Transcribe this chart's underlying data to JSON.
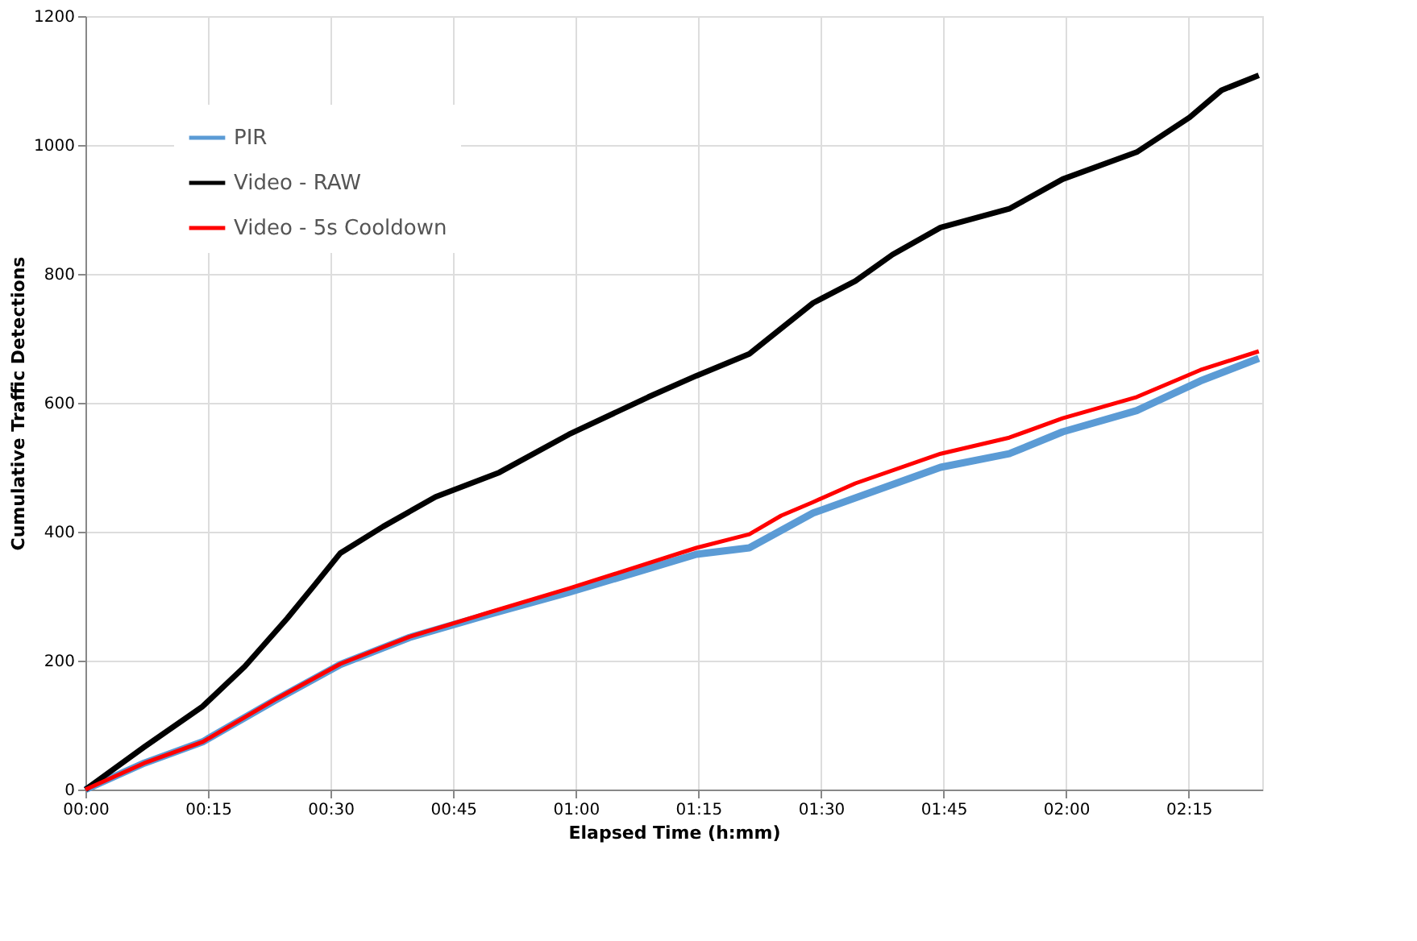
{
  "chart_data": {
    "type": "line",
    "xlabel": "Elapsed Time (h:mm)",
    "ylabel": "Cumulative Traffic Detections",
    "xlim": [
      0,
      2.4
    ],
    "ylim": [
      0,
      1200
    ],
    "xticks": [
      {
        "value": 0,
        "label": "00:00"
      },
      {
        "value": 0.25,
        "label": "00:15"
      },
      {
        "value": 0.5,
        "label": "00:30"
      },
      {
        "value": 0.75,
        "label": "00:45"
      },
      {
        "value": 1,
        "label": "01:00"
      },
      {
        "value": 1.25,
        "label": "01:15"
      },
      {
        "value": 1.5,
        "label": "01:30"
      },
      {
        "value": 1.75,
        "label": "01:45"
      },
      {
        "value": 2,
        "label": "02:00"
      },
      {
        "value": 2.25,
        "label": "02:15"
      }
    ],
    "yticks": [
      0,
      200,
      400,
      600,
      800,
      1000,
      1200
    ],
    "grid": true,
    "legend": "top left",
    "line_style": "solid",
    "marker": "none",
    "series": [
      {
        "name": "PIR",
        "color": "#5b9bd5",
        "x": [
          0,
          0.12,
          0.239,
          0.39,
          0.52,
          0.661,
          0.824,
          0.986,
          1.127,
          1.246,
          1.354,
          1.484,
          1.744,
          1.884,
          1.993,
          2.144,
          2.274,
          2.393
        ],
        "values": [
          0,
          41,
          74,
          140,
          194,
          236,
          272,
          306,
          338,
          365,
          375,
          429,
          500,
          521,
          555,
          588,
          634,
          669
        ]
      },
      {
        "name": "Video - RAW",
        "color": "#000000",
        "x": [
          0,
          0.12,
          0.239,
          0.325,
          0.412,
          0.467,
          0.52,
          0.607,
          0.714,
          0.844,
          0.986,
          1.148,
          1.246,
          1.354,
          1.484,
          1.57,
          1.646,
          1.744,
          1.884,
          1.993,
          2.144,
          2.252,
          2.317,
          2.393
        ],
        "values": [
          0,
          66,
          129,
          191,
          266,
          317,
          367,
          408,
          454,
          492,
          551,
          609,
          642,
          676,
          755,
          789,
          830,
          872,
          901,
          947,
          989,
          1043,
          1085,
          1108
        ]
      },
      {
        "name": "Video - 5s Cooldown",
        "color": "#ff0000",
        "x": [
          0,
          0.12,
          0.239,
          0.39,
          0.52,
          0.661,
          0.824,
          0.986,
          1.127,
          1.246,
          1.354,
          1.419,
          1.484,
          1.57,
          1.744,
          1.884,
          1.993,
          2.144,
          2.274,
          2.393
        ],
        "values": [
          0,
          41,
          74,
          141,
          195,
          237,
          275,
          312,
          346,
          375,
          396,
          425,
          446,
          475,
          521,
          546,
          576,
          609,
          651,
          680
        ]
      }
    ]
  }
}
